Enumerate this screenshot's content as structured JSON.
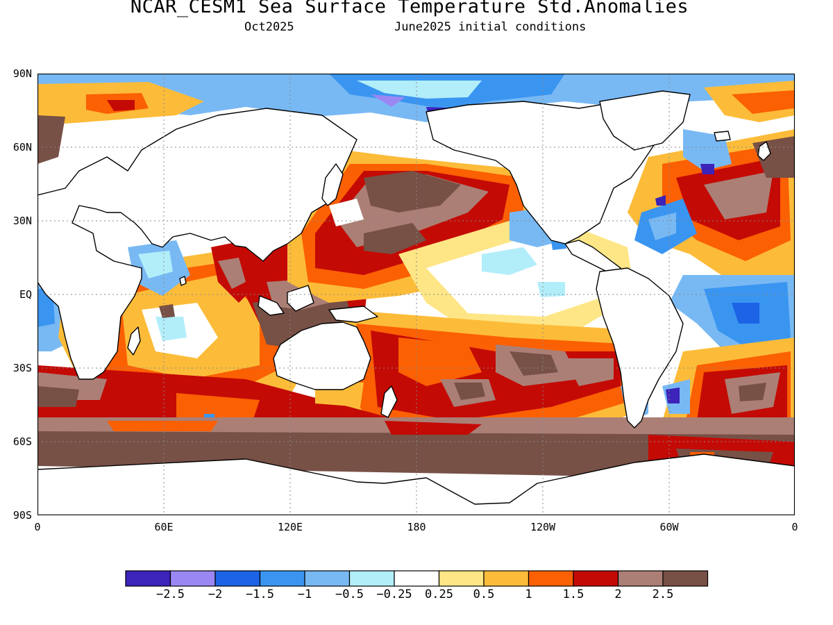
{
  "title": "NCAR_CESM1 Sea Surface Temperature Std.Anomalies",
  "subtitle_left": "Oct2025",
  "subtitle_right": "June2025 initial conditions",
  "lat_labels": [
    "90N",
    "60N",
    "30N",
    "EQ",
    "30S",
    "60S",
    "90S"
  ],
  "lon_labels": [
    "0",
    "60E",
    "120E",
    "180",
    "120W",
    "60W",
    "0"
  ],
  "colorbar": {
    "colors": [
      "#3c23b9",
      "#9a87f3",
      "#1c63e6",
      "#3a95f1",
      "#78b9f4",
      "#b2eefa",
      "#ffffff",
      "#fee686",
      "#fcbc39",
      "#fb6003",
      "#c40a05",
      "#ab7f75",
      "#775046"
    ],
    "labels": [
      "-2.5",
      "-2",
      "-1.5",
      "-1",
      "-0.5",
      "-0.25",
      "0.25",
      "0.5",
      "1",
      "1.5",
      "2",
      "2.5"
    ]
  },
  "map": {
    "type": "heatmap",
    "projection": "equirectangular, 0 to 360 longitude, 90S to 90N",
    "grid": "dotted at 60 degree longitude and 30 degree latitude",
    "land_color": "#ffffff",
    "coastline_color": "#000000"
  }
}
